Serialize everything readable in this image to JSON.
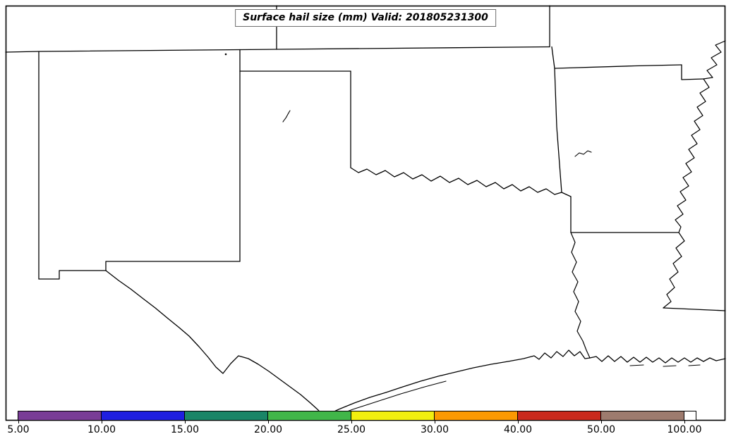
{
  "title": {
    "text": "Surface hail size (mm) Valid: 201805231300",
    "variable": "Surface hail size",
    "units": "mm",
    "valid_time": "201805231300"
  },
  "colorbar": {
    "tick_labels": [
      "5.00",
      "10.00",
      "15.00",
      "20.00",
      "25.00",
      "30.00",
      "40.00",
      "50.00",
      "100.00"
    ],
    "segments": [
      {
        "range": "5.00-10.00",
        "color": "#793d96"
      },
      {
        "range": "10.00-15.00",
        "color": "#1f1fe0"
      },
      {
        "range": "15.00-20.00",
        "color": "#1a8567"
      },
      {
        "range": "20.00-25.00",
        "color": "#41b649"
      },
      {
        "range": "25.00-30.00",
        "color": "#f2ef0f"
      },
      {
        "range": "30.00-40.00",
        "color": "#fb9902"
      },
      {
        "range": "40.00-50.00",
        "color": "#c92a1d"
      },
      {
        "range": "50.00-100.00",
        "color": "#9d7b6e"
      },
      {
        "range": "above-100.00",
        "color": "#ffffff"
      }
    ]
  },
  "chart_data": {
    "type": "map",
    "title": "Surface hail size (mm) Valid: 201805231300",
    "field": "Surface hail size",
    "units": "mm",
    "valid_time": "201805231300",
    "colorbar_levels": [
      5.0,
      10.0,
      15.0,
      20.0,
      25.0,
      30.0,
      40.0,
      50.0,
      100.0
    ],
    "colorbar_colors": [
      "#793d96",
      "#1f1fe0",
      "#1a8567",
      "#41b649",
      "#f2ef0f",
      "#fb9902",
      "#c92a1d",
      "#9d7b6e",
      "#ffffff"
    ],
    "legend_position": "bottom horizontal colorbar",
    "region_states_visible": [
      "New Mexico",
      "Texas",
      "Oklahoma",
      "Kansas",
      "Missouri",
      "Arkansas",
      "Louisiana"
    ],
    "plotted_field_values": "none visible (no hail shading/contours appear; only state boundaries, rivers and Gulf coastline are drawn)"
  }
}
